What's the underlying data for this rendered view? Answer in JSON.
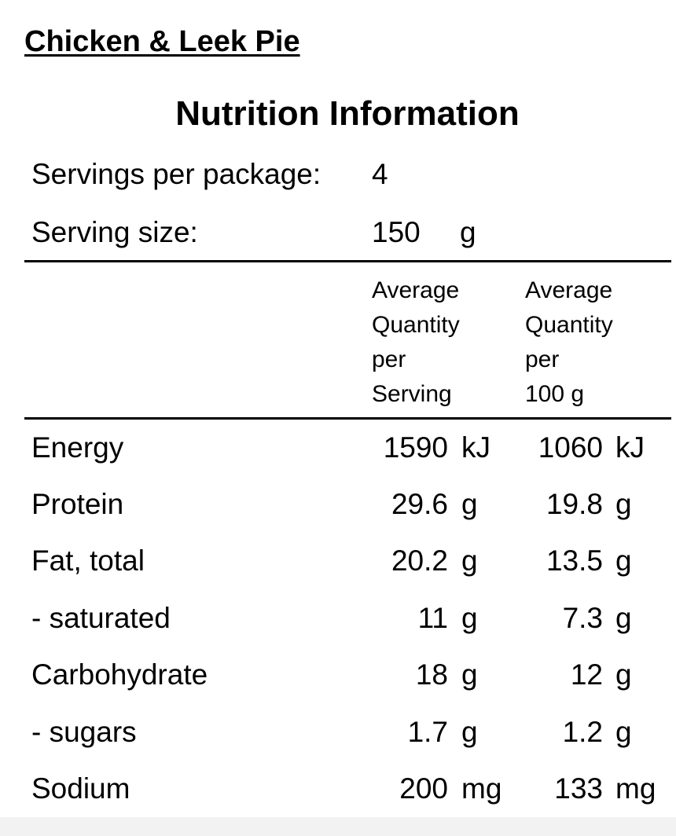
{
  "product": {
    "name": "Chicken & Leek Pie"
  },
  "panel": {
    "heading": "Nutrition Information",
    "servings_per_package_label": "Servings per package:",
    "servings_per_package_value": "4",
    "serving_size_label": "Serving size:",
    "serving_size_value": "150",
    "serving_size_unit": "g"
  },
  "columns": {
    "per_serving": [
      "Average",
      "Quantity",
      "per",
      "Serving"
    ],
    "per_100g": [
      "Average",
      "Quantity",
      "per",
      "100 g"
    ]
  },
  "nutrients": [
    {
      "name": "Energy",
      "serving_value": "1590",
      "serving_unit": "kJ",
      "per100_value": "1060",
      "per100_unit": "kJ"
    },
    {
      "name": "Protein",
      "serving_value": "29.6",
      "serving_unit": "g",
      "per100_value": "19.8",
      "per100_unit": "g"
    },
    {
      "name": "Fat, total",
      "serving_value": "20.2",
      "serving_unit": "g",
      "per100_value": "13.5",
      "per100_unit": "g"
    },
    {
      "name": "- saturated",
      "serving_value": "11",
      "serving_unit": "g",
      "per100_value": "7.3",
      "per100_unit": "g"
    },
    {
      "name": "Carbohydrate",
      "serving_value": "18",
      "serving_unit": "g",
      "per100_value": "12",
      "per100_unit": "g"
    },
    {
      "name": "- sugars",
      "serving_value": "1.7",
      "serving_unit": "g",
      "per100_value": "1.2",
      "per100_unit": "g"
    },
    {
      "name": "Sodium",
      "serving_value": "200",
      "serving_unit": "mg",
      "per100_value": "133",
      "per100_unit": "mg"
    }
  ]
}
